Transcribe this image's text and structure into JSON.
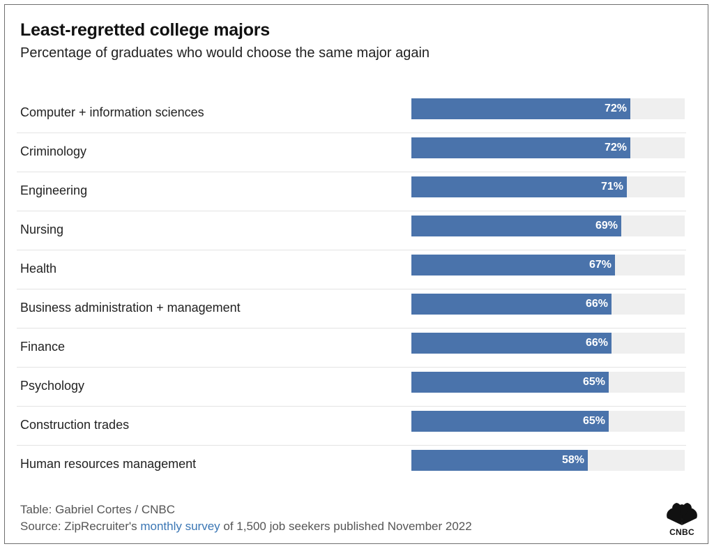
{
  "title": "Least-regretted college majors",
  "subtitle": "Percentage of graduates who would choose the same major again",
  "chart_data": {
    "type": "bar",
    "orientation": "horizontal",
    "title": "Least-regretted college majors",
    "subtitle": "Percentage of graduates who would choose the same major again",
    "categories": [
      "Computer + information sciences",
      "Criminology",
      "Engineering",
      "Nursing",
      "Health",
      "Business administration + management",
      "Finance",
      "Psychology",
      "Construction trades",
      "Human resources management"
    ],
    "values": [
      72,
      72,
      71,
      69,
      67,
      66,
      66,
      65,
      65,
      58
    ],
    "value_labels": [
      "72%",
      "72%",
      "71%",
      "69%",
      "67%",
      "66%",
      "66%",
      "65%",
      "65%",
      "58%"
    ],
    "xlim": [
      0,
      90
    ],
    "bar_color": "#4a73ab",
    "track_color": "#efefef",
    "grid": false
  },
  "footer": {
    "credit": "Table: Gabriel Cortes / CNBC",
    "source_prefix": "Source: ZipRecruiter's ",
    "source_link": "monthly survey",
    "source_suffix": " of 1,500 job seekers published November 2022",
    "link_color": "#3a76b4"
  },
  "logo": {
    "icon": "peacock-icon",
    "text": "CNBC"
  }
}
